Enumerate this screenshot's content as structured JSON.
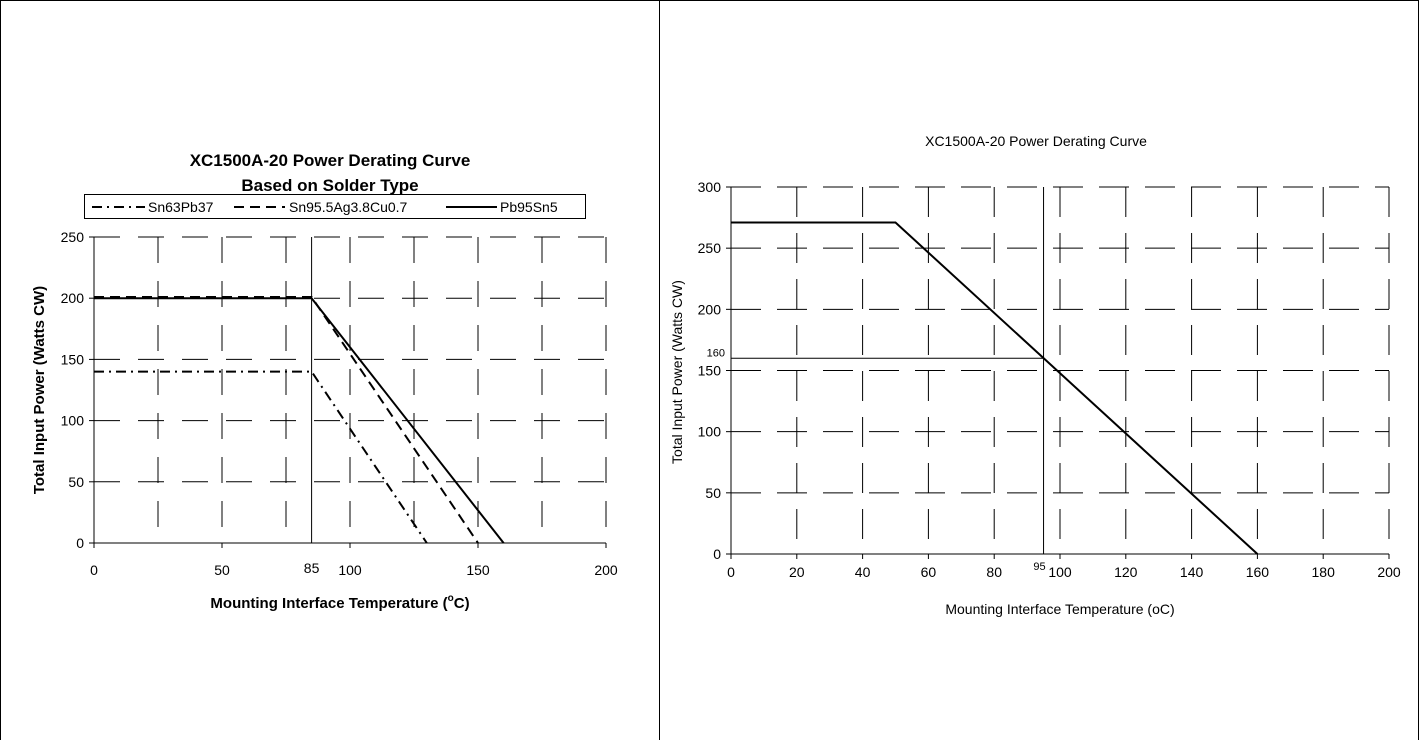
{
  "chart_data": [
    {
      "type": "line",
      "title_lines": [
        "XC1500A-20 Power Derating Curve",
        "Based on Solder Type"
      ],
      "xlabel_main": "Mounting Interface Temperature (",
      "xlabel_sup": "o",
      "xlabel_tail": "C)",
      "ylabel": "Total Input Power (Watts CW)",
      "xlim": [
        0,
        200
      ],
      "ylim": [
        0,
        250
      ],
      "xticks": [
        0,
        50,
        100,
        150,
        200
      ],
      "yticks": [
        0,
        50,
        100,
        150,
        200,
        250
      ],
      "grid": true,
      "legend_position": "top",
      "annotations": [
        {
          "x": 85,
          "label": "85"
        }
      ],
      "series": [
        {
          "name": "Sn63Pb37",
          "style": "dashdot",
          "x": [
            0,
            85,
            130
          ],
          "y": [
            140,
            140,
            0
          ]
        },
        {
          "name": "Sn95.5Ag3.8Cu0.7",
          "style": "dashed",
          "x": [
            0,
            85,
            150
          ],
          "y": [
            201,
            201,
            0
          ]
        },
        {
          "name": "Pb95Sn5",
          "style": "solid",
          "x": [
            0,
            85,
            160
          ],
          "y": [
            200,
            200,
            0
          ]
        }
      ]
    },
    {
      "type": "line",
      "title": "XC1500A-20 Power Derating Curve",
      "xlabel": "Mounting Interface Temperature (oC)",
      "ylabel": "Total Input Power (Watts CW)",
      "xlim": [
        0,
        200
      ],
      "ylim": [
        0,
        300
      ],
      "xticks": [
        0,
        20,
        40,
        60,
        80,
        100,
        120,
        140,
        160,
        180,
        200
      ],
      "yticks": [
        0,
        50,
        100,
        150,
        200,
        250,
        300
      ],
      "grid": true,
      "annotations": [
        {
          "x": 95,
          "label": "95"
        },
        {
          "y": 160,
          "label": "160"
        }
      ],
      "series": [
        {
          "x": [
            0,
            50,
            160
          ],
          "y": [
            271,
            271,
            0
          ]
        }
      ]
    }
  ]
}
